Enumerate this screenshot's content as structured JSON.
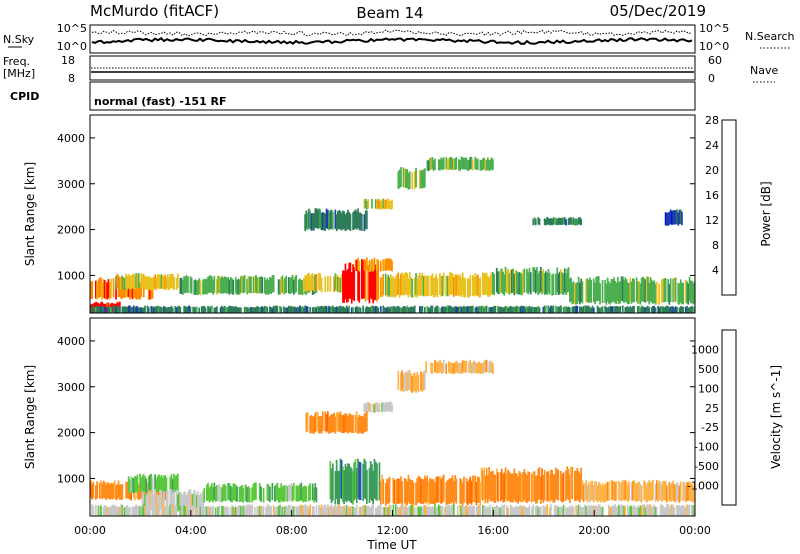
{
  "header": {
    "station": "McMurdo (fitACF)",
    "beam": "Beam 14",
    "date": "05/Dec/2019"
  },
  "top_panels": {
    "nsky_label": "N.Sky",
    "nsearch_label": "N.Search",
    "nsky_ticks": [
      "10^5",
      "10^0"
    ],
    "nsearch_ticks": [
      "10^5",
      "10^0"
    ],
    "freq_label_1": "Freq.",
    "freq_label_2": "[MHz]",
    "freq_ticks": [
      "18",
      "8"
    ],
    "nave_label": "Nave",
    "nave_ticks": [
      "60",
      "0"
    ],
    "cpid_label": "CPID",
    "cpid_text": "normal (fast) -151 RF"
  },
  "chart_data": [
    {
      "type": "heatmap",
      "name": "power",
      "ylabel": "Slant Range [km]",
      "y_ticks": [
        "1000",
        "2000",
        "3000",
        "4000"
      ],
      "ylim": [
        180,
        4500
      ],
      "xlim": [
        0,
        24
      ],
      "colorbar": {
        "label": "Power [dB]",
        "ticks": [
          "4",
          "8",
          "12",
          "16",
          "20",
          "24",
          "28"
        ],
        "colors": [
          "#0000ff",
          "#1e3fa8",
          "#2e7d5a",
          "#4caf50",
          "#e8c020",
          "#ff8c00",
          "#ff0000"
        ]
      },
      "bands": [
        {
          "t0": 0.0,
          "t1": 1.2,
          "r0": 200,
          "r1": 400,
          "level": 6
        },
        {
          "t0": 0.0,
          "t1": 2.5,
          "r0": 500,
          "r1": 900,
          "level": 5
        },
        {
          "t0": 1.0,
          "t1": 3.5,
          "r0": 700,
          "r1": 1000,
          "level": 4
        },
        {
          "t0": 3.5,
          "t1": 9.0,
          "r0": 600,
          "r1": 950,
          "level": 3
        },
        {
          "t0": 8.5,
          "t1": 10.2,
          "r0": 650,
          "r1": 1000,
          "level": 4
        },
        {
          "t0": 10.0,
          "t1": 11.5,
          "r0": 450,
          "r1": 1200,
          "level": 6
        },
        {
          "t0": 10.5,
          "t1": 12.0,
          "r0": 1100,
          "r1": 1350,
          "level": 5
        },
        {
          "t0": 11.5,
          "t1": 16.0,
          "r0": 550,
          "r1": 1000,
          "level": 4
        },
        {
          "t0": 16.0,
          "t1": 19.0,
          "r0": 600,
          "r1": 1100,
          "level": 3
        },
        {
          "t0": 19.0,
          "t1": 24.0,
          "r0": 400,
          "r1": 900,
          "level": 3
        },
        {
          "t0": 13.3,
          "t1": 16.0,
          "r0": 3300,
          "r1": 3550,
          "level": 3
        },
        {
          "t0": 12.2,
          "t1": 13.3,
          "r0": 2900,
          "r1": 3300,
          "level": 3
        },
        {
          "t0": 10.8,
          "t1": 12.0,
          "r0": 2450,
          "r1": 2650,
          "level": 4
        },
        {
          "t0": 8.5,
          "t1": 11.0,
          "r0": 2000,
          "r1": 2400,
          "level": 2
        },
        {
          "t0": 17.5,
          "t1": 19.5,
          "r0": 2100,
          "r1": 2250,
          "level": 2
        },
        {
          "t0": 22.8,
          "t1": 23.5,
          "r0": 2100,
          "r1": 2400,
          "level": 1
        },
        {
          "t0": 0.0,
          "t1": 24.0,
          "r0": 180,
          "r1": 320,
          "level": 2
        }
      ]
    },
    {
      "type": "heatmap",
      "name": "velocity",
      "ylabel": "Slant Range [km]",
      "y_ticks": [
        "1000",
        "2000",
        "3000",
        "4000"
      ],
      "ylim": [
        180,
        4500
      ],
      "xlim": [
        0,
        24
      ],
      "x_ticks": [
        "00:00",
        "04:00",
        "08:00",
        "12:00",
        "16:00",
        "20:00",
        "00:00"
      ],
      "xlabel": "Time UT",
      "colorbar": {
        "label": "Velocity [m s^-1]",
        "ticks": [
          "1000",
          "500",
          "100",
          "25",
          "-25",
          "-100",
          "-500",
          "-1000"
        ],
        "colors": [
          "#ff0000",
          "#ff6a00",
          "#ff8c1a",
          "#ffb347",
          "#c8c8c8",
          "#5ac83c",
          "#3c9c5a",
          "#2850b4",
          "#1e3cc8"
        ]
      },
      "bands": [
        {
          "t0": 0.0,
          "t1": 3.0,
          "r0": 550,
          "r1": 900,
          "level": 2
        },
        {
          "t0": 1.5,
          "t1": 3.5,
          "r0": 700,
          "r1": 1050,
          "level": 5
        },
        {
          "t0": 2.0,
          "t1": 4.5,
          "r0": 300,
          "r1": 700,
          "level": 4
        },
        {
          "t0": 4.5,
          "t1": 9.0,
          "r0": 500,
          "r1": 850,
          "level": 5
        },
        {
          "t0": 9.5,
          "t1": 11.5,
          "r0": 500,
          "r1": 1300,
          "level": 6
        },
        {
          "t0": 11.5,
          "t1": 15.5,
          "r0": 450,
          "r1": 1000,
          "level": 2
        },
        {
          "t0": 15.5,
          "t1": 19.5,
          "r0": 500,
          "r1": 1150,
          "level": 2
        },
        {
          "t0": 19.5,
          "t1": 24.0,
          "r0": 500,
          "r1": 900,
          "level": 3
        },
        {
          "t0": 13.3,
          "t1": 16.0,
          "r0": 3300,
          "r1": 3550,
          "level": 3
        },
        {
          "t0": 12.2,
          "t1": 13.3,
          "r0": 2900,
          "r1": 3300,
          "level": 3
        },
        {
          "t0": 10.8,
          "t1": 12.0,
          "r0": 2450,
          "r1": 2650,
          "level": 4
        },
        {
          "t0": 8.5,
          "t1": 11.0,
          "r0": 2000,
          "r1": 2400,
          "level": 2
        },
        {
          "t0": 0.0,
          "t1": 24.0,
          "r0": 180,
          "r1": 400,
          "level": 4
        }
      ]
    }
  ]
}
